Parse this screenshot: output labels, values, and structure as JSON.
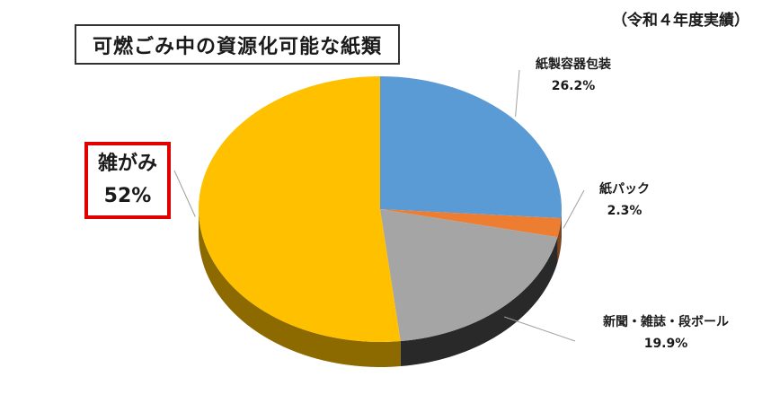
{
  "header": {
    "title": "可燃ごみ中の資源化可能な紙類",
    "subtitle": "（令和４年度実績）"
  },
  "chart_data": {
    "type": "pie",
    "title": "可燃ごみ中の資源化可能な紙類",
    "subtitle": "（令和４年度実績）",
    "unit": "%",
    "slices": [
      {
        "label": "紙製容器包装",
        "value": 26.2,
        "value_label": "26.2%",
        "color": "#5b9bd5"
      },
      {
        "label": "紙パック",
        "value": 2.3,
        "value_label": "2.3%",
        "color": "#ed7d31"
      },
      {
        "label": "新聞・雑誌・段ボール",
        "value": 19.9,
        "value_label": "19.9%",
        "color": "#a5a5a5"
      },
      {
        "label": "雑がみ",
        "value": 52,
        "value_label": "52%",
        "color": "#ffc000",
        "highlighted": true
      }
    ],
    "legend": "none",
    "style": "3d-pie"
  }
}
